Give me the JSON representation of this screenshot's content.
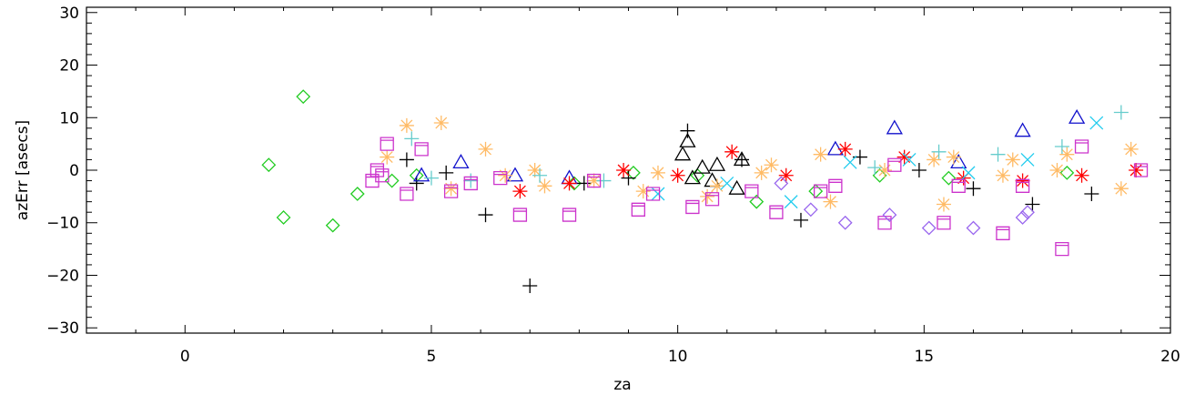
{
  "chart_data": {
    "type": "scatter",
    "title": "",
    "xlabel": "za",
    "ylabel": "azErr [asecs]",
    "xlim": [
      -2,
      20
    ],
    "ylim": [
      -31,
      31
    ],
    "xticks": [
      0,
      5,
      10,
      15,
      20
    ],
    "xtick_labels": [
      "0",
      "5",
      "10",
      "15",
      "20"
    ],
    "yticks": [
      -30,
      -20,
      -10,
      0,
      10,
      20,
      30
    ],
    "ytick_labels": [
      "−30",
      "−20",
      "−10",
      "0",
      "10",
      "20",
      "30"
    ],
    "grid": false,
    "legend": "none",
    "series": [
      {
        "marker": "diamond",
        "color": "#22cc22",
        "points": [
          [
            1.7,
            1
          ],
          [
            2.0,
            -9
          ],
          [
            2.4,
            14
          ],
          [
            3.0,
            -10.5
          ],
          [
            3.5,
            -4.5
          ],
          [
            4.2,
            -2
          ],
          [
            4.7,
            -1
          ],
          [
            7.9,
            -2.5
          ],
          [
            9.1,
            -0.5
          ],
          [
            10.4,
            -1
          ],
          [
            11.6,
            -6
          ],
          [
            12.8,
            -4
          ],
          [
            14.1,
            -1
          ],
          [
            15.5,
            -1.5
          ],
          [
            17.9,
            -0.5
          ]
        ]
      },
      {
        "marker": "plus",
        "color": "#000000",
        "points": [
          [
            4.5,
            2
          ],
          [
            4.7,
            -2.5
          ],
          [
            5.3,
            -0.5
          ],
          [
            6.1,
            -8.5
          ],
          [
            7.0,
            -22
          ],
          [
            8.1,
            -2.5
          ],
          [
            9.0,
            -1.5
          ],
          [
            10.2,
            7.5
          ],
          [
            11.3,
            2
          ],
          [
            12.5,
            -9.5
          ],
          [
            13.7,
            2.5
          ],
          [
            14.9,
            0
          ],
          [
            16.0,
            -3.5
          ],
          [
            17.2,
            -6.5
          ],
          [
            18.4,
            -4.5
          ]
        ]
      },
      {
        "marker": "triangle",
        "color": "#000000",
        "points": [
          [
            10.1,
            3
          ],
          [
            10.2,
            5.5
          ],
          [
            10.3,
            -1.5
          ],
          [
            10.5,
            0.5
          ],
          [
            10.7,
            -2
          ],
          [
            10.8,
            1
          ],
          [
            11.2,
            -3.5
          ],
          [
            11.3,
            2
          ]
        ]
      },
      {
        "marker": "triangle",
        "color": "#1111cc",
        "points": [
          [
            4.8,
            -1
          ],
          [
            5.6,
            1.5
          ],
          [
            6.7,
            -1
          ],
          [
            7.8,
            -1.5
          ],
          [
            13.2,
            4
          ],
          [
            14.4,
            8
          ],
          [
            15.7,
            1.5
          ],
          [
            17.0,
            7.5
          ],
          [
            18.1,
            10
          ]
        ]
      },
      {
        "marker": "asterisk",
        "color": "#ff0000",
        "points": [
          [
            6.8,
            -4
          ],
          [
            7.8,
            -2.5
          ],
          [
            8.9,
            0
          ],
          [
            10.0,
            -1
          ],
          [
            11.1,
            3.5
          ],
          [
            12.2,
            -1
          ],
          [
            13.4,
            4
          ],
          [
            14.6,
            2.5
          ],
          [
            15.8,
            -1.5
          ],
          [
            17.0,
            -2
          ],
          [
            18.2,
            -1
          ],
          [
            19.3,
            0
          ]
        ]
      },
      {
        "marker": "asterisk",
        "color": "#ffbb66",
        "points": [
          [
            4.1,
            2.5
          ],
          [
            4.5,
            8.5
          ],
          [
            5.2,
            9
          ],
          [
            5.4,
            -3.5
          ],
          [
            6.1,
            4
          ],
          [
            6.5,
            -1
          ],
          [
            7.1,
            0
          ],
          [
            7.3,
            -3
          ],
          [
            8.3,
            -2
          ],
          [
            9.3,
            -4
          ],
          [
            9.6,
            -0.5
          ],
          [
            10.6,
            -5
          ],
          [
            10.8,
            -3
          ],
          [
            11.7,
            -0.5
          ],
          [
            11.9,
            1
          ],
          [
            12.9,
            3
          ],
          [
            13.1,
            -6
          ],
          [
            14.2,
            0
          ],
          [
            15.2,
            2
          ],
          [
            15.4,
            -6.5
          ],
          [
            15.6,
            2.5
          ],
          [
            16.6,
            -1
          ],
          [
            16.8,
            2
          ],
          [
            17.7,
            0
          ],
          [
            17.9,
            3
          ],
          [
            19.0,
            -3.5
          ],
          [
            19.2,
            4
          ]
        ]
      },
      {
        "marker": "cross",
        "color": "#22ccee",
        "points": [
          [
            9.6,
            -4.5
          ],
          [
            11.0,
            -2.5
          ],
          [
            12.3,
            -6
          ],
          [
            13.5,
            1.5
          ],
          [
            14.7,
            2
          ],
          [
            15.9,
            -0.5
          ],
          [
            17.1,
            2
          ],
          [
            18.5,
            9
          ]
        ]
      },
      {
        "marker": "plus",
        "color": "#66cccc",
        "points": [
          [
            4.6,
            6
          ],
          [
            5.0,
            -1.5
          ],
          [
            5.8,
            -2
          ],
          [
            7.2,
            -1
          ],
          [
            8.5,
            -2
          ],
          [
            14.0,
            0.5
          ],
          [
            15.3,
            3.5
          ],
          [
            16.5,
            3
          ],
          [
            17.8,
            4.5
          ],
          [
            19.0,
            11
          ]
        ]
      },
      {
        "marker": "square",
        "color": "#cc33cc",
        "points": [
          [
            3.8,
            -2
          ],
          [
            3.9,
            0
          ],
          [
            4.0,
            -1
          ],
          [
            4.1,
            5
          ],
          [
            4.5,
            -4.5
          ],
          [
            4.8,
            4
          ],
          [
            5.4,
            -4
          ],
          [
            5.8,
            -2.5
          ],
          [
            6.4,
            -1.5
          ],
          [
            6.8,
            -8.5
          ],
          [
            7.8,
            -8.5
          ],
          [
            8.3,
            -2
          ],
          [
            9.2,
            -7.5
          ],
          [
            9.5,
            -4.5
          ],
          [
            10.3,
            -7
          ],
          [
            10.7,
            -5.5
          ],
          [
            11.5,
            -4
          ],
          [
            12.0,
            -8
          ],
          [
            12.9,
            -4
          ],
          [
            13.2,
            -3
          ],
          [
            14.2,
            -10
          ],
          [
            14.4,
            1
          ],
          [
            15.4,
            -10
          ],
          [
            15.7,
            -3
          ],
          [
            16.6,
            -12
          ],
          [
            17.0,
            -3
          ],
          [
            17.8,
            -15
          ],
          [
            18.2,
            4.5
          ],
          [
            19.4,
            0
          ]
        ]
      },
      {
        "marker": "diamond",
        "color": "#9966ee",
        "points": [
          [
            12.1,
            -2.5
          ],
          [
            12.7,
            -7.5
          ],
          [
            13.4,
            -10
          ],
          [
            14.3,
            -8.5
          ],
          [
            15.1,
            -11
          ],
          [
            16.0,
            -11
          ],
          [
            17.0,
            -9
          ],
          [
            17.1,
            -8
          ]
        ]
      }
    ]
  }
}
